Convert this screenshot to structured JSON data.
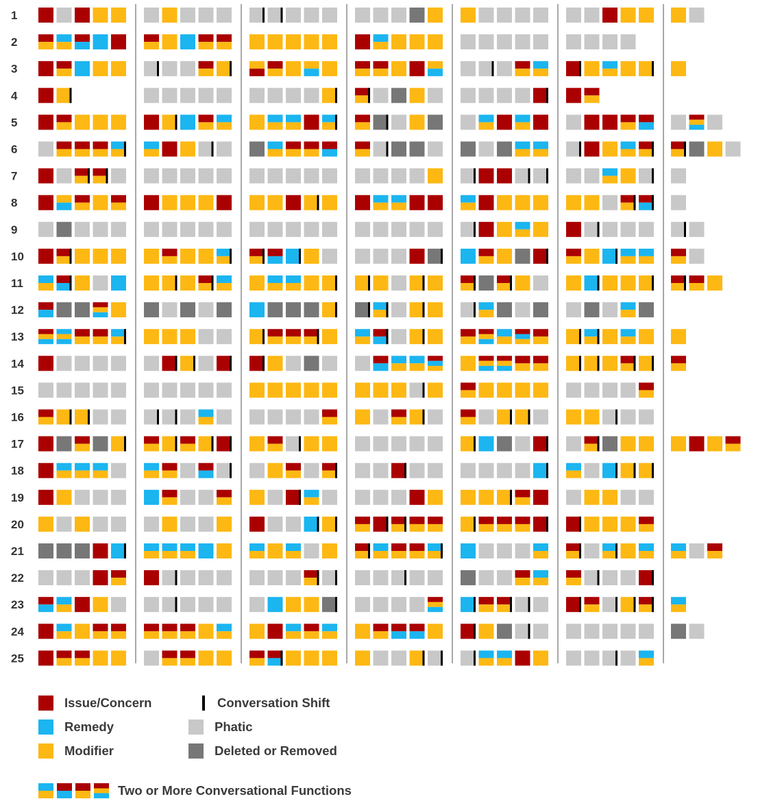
{
  "colors": {
    "issue": "#aa0000",
    "remedy": "#1bb5f0",
    "modifier": "#fdb813",
    "phatic": "#c8c8c8",
    "deleted": "#777777",
    "shift": "#000000"
  },
  "chart_data": {
    "type": "heatmap",
    "title": "",
    "row_labels": [
      "1",
      "2",
      "3",
      "4",
      "5",
      "6",
      "7",
      "8",
      "9",
      "10",
      "11",
      "12",
      "13",
      "14",
      "15",
      "16",
      "17",
      "18",
      "19",
      "20",
      "21",
      "22",
      "23",
      "24",
      "25"
    ],
    "code_key": {
      "I": "Issue/Concern",
      "R": "Remedy",
      "M": "Modifier",
      "P": "Phatic",
      "D": "Deleted or Removed",
      "+": "two or more functions (top/bottom halves)",
      "|": "conversation shift after message"
    },
    "rows": [
      [
        "I P I M M",
        "P M P P P",
        "P| P| P P P",
        "P P P D M",
        "M P P P P",
        "P P I M M",
        "M P"
      ],
      [
        "I+M R+M I+R R I",
        "I+M M R I+M I+M",
        "M M M M M",
        "I R+M M M M",
        "P P P P P",
        "P P P P",
        ""
      ],
      [
        "I I+M R M M",
        "P| P P I+M M|",
        "M+I I+M M M+R M",
        "I+M I+M M I M+R",
        "P P| P I+M R+M",
        "I| M R+M M M|",
        "M"
      ],
      [
        "I M|",
        "P P P P P",
        "P P P P M|",
        "I+M| P D M P",
        "P P P P I|",
        "I I+M",
        ""
      ],
      [
        "I I+M M M M",
        "I M| R I+M R+M",
        "M R+M R+M I R+M|",
        "I+M D| P M D",
        "P R+M I R+M I",
        "P I I I+M I+R",
        "P I+M+R P"
      ],
      [
        "P I+M I+M I+M R+M|",
        "R+M I M P| P",
        "D R+M I+M I+M I+R",
        "I+M P| D D P",
        "D P D R+M R+M",
        "P| I M R+M I+M|",
        "I+M| D M P"
      ],
      [
        "I P I+M| I+M| P",
        "P P P P P",
        "P P P P P",
        "P P P P M",
        "P| I I P| P|",
        "P P R+M M P|",
        "P"
      ],
      [
        "I M+R I+M M I+M",
        "I M M M I",
        "M M I M| M",
        "I R+M R+M I I",
        "R+M I M M M",
        "M M P I+M| I+R|",
        "P"
      ],
      [
        "P D P P P",
        "P P P P P",
        "P P P P P",
        "P P P P P",
        "P| I M R+M M",
        "I P| P P P",
        "P| P"
      ],
      [
        "I I+M| M M M",
        "M I+M M M R+M|",
        "I+M| I+R R| M P",
        "P P P I D|",
        "R I+M M D I|",
        "I+M M R| R+M R+M",
        "I+M P"
      ],
      [
        "R+M I+R| M P R",
        "M M| M I+M| R+M",
        "M R+M R+M M M|",
        "M| M P M| M",
        "I+M| D I+M| M P",
        "M R| M M M|",
        "I+M| I+M M"
      ],
      [
        "I+R D D I+M+R M",
        "D P D P D",
        "R D D D M|",
        "D| R+M| P M| M",
        "P| R+M D P D",
        "P D P R+M D",
        ""
      ],
      [
        "I+M+R R+M+R I+M I+M R+M|",
        "M M M P P",
        "M| I+M I+M I+M| M",
        "R+M I+R| P M| M",
        "I+M I+M+R R+M I+R+M I+M",
        "M| R+M| M R+M M",
        "M"
      ],
      [
        "I P P P P",
        "P I| M| P I|",
        "I| M P D P",
        "P I+R R+M R+M I+R+M",
        "M I+M+R I+M+R I+M I+M",
        "M| M| M I+M| M|",
        "I+M"
      ],
      [
        "P P P P P",
        "P P P P P",
        "M M M M M",
        "M M M P| M",
        "I+M M M M M",
        "P P P P I+M",
        ""
      ],
      [
        "I+M M| M| P P",
        "P| P| P R+M P",
        "P P P P I+M",
        "M P I+M M| P",
        "I+M P M| M| P",
        "M M P| P P",
        ""
      ],
      [
        "I D I+M D M|",
        "I+M M| I+M M| I|",
        "M I+M P| M M",
        "P P P P P",
        "M| R D P I|",
        "P I+M| D M M",
        "M I M I+M"
      ],
      [
        "I R+M R+M R+M P",
        "R+M I+M P I+R P|",
        "P M I+M P I+M|",
        "P P I| P P",
        "P P P P R|",
        "R+M P R| M| M|",
        ""
      ],
      [
        "I M P P P",
        "R I+M P P I+M",
        "M P I| R+M P",
        "P P P I M",
        "M M M| I+M I",
        "P M M P P",
        ""
      ],
      [
        "M P M P P",
        "P M P P M",
        "I P P R| M|",
        "I+M I| I+M| I+M I+M",
        "M| I+M I+M I+M I|",
        "I| M M M I+M",
        ""
      ],
      [
        "D D D I R|",
        "R+M R+M R+M R M",
        "R+M M R+M P M",
        "I+M| R+M I+M I+M R+M|",
        "R P P P R+M",
        "I+M| P R+M| M R+M",
        "R+M P I+M"
      ],
      [
        "P P P I I+M",
        "I P| P P P",
        "P P P I+M| P|",
        "P P P| P P",
        "D P P I+M R+M",
        "I+M P| P P I|",
        ""
      ],
      [
        "I+R R+M I M P",
        "P P| P P P",
        "P R M M D|",
        "P P P P I+M+R",
        "R| I+M I+M| P| P",
        "I| I+M P| M| I+M|",
        "R+M"
      ],
      [
        "I R+M M I+M I+M",
        "I+M I+M I+M M R+M",
        "M I R+M I+M R+M",
        "M I+M I+R I+R M",
        "I| M D P| P",
        "P P P P P",
        "D P"
      ],
      [
        "I I+M I+M M M",
        "P I+M I+M M M",
        "I+M I+R| M M M",
        "M P P M| P|",
        "P| R+M R+M I M",
        "P P P| P R+M",
        ""
      ]
    ]
  },
  "legend": {
    "issue": "Issue/Concern",
    "remedy": "Remedy",
    "modifier": "Modifier",
    "shift": "Conversation Shift",
    "phatic": "Phatic",
    "deleted": "Deleted or Removed",
    "multi": "Two or More Conversational Functions"
  }
}
